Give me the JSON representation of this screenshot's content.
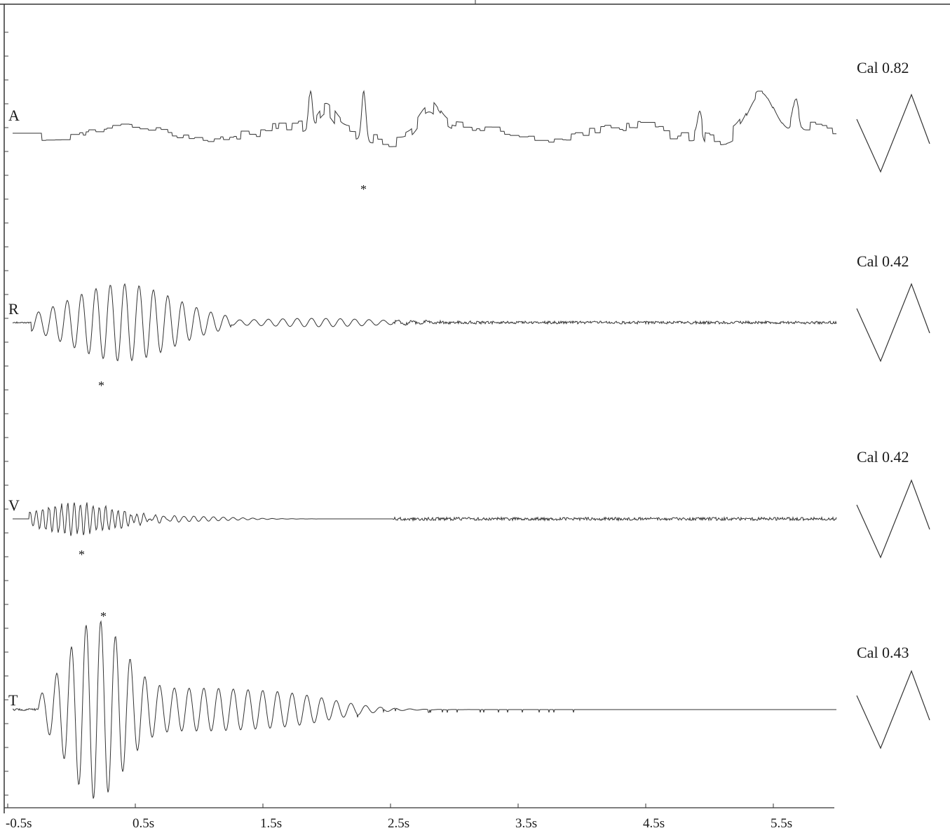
{
  "chart_data": {
    "type": "line",
    "x_axis": {
      "ticks": [
        "-0.5s",
        "0.5s",
        "1.5s",
        "2.5s",
        "3.5s",
        "4.5s",
        "5.5s"
      ],
      "range_s": [
        -0.5,
        6.0
      ]
    },
    "traces": [
      {
        "channel": "A",
        "calibration": "Cal 0.82",
        "marker": "*",
        "peak_time_s": 2.33,
        "signature": "stepped low-frequency wander, broad swings, sharp negative spike at peak"
      },
      {
        "channel": "R",
        "calibration": "Cal 0.42",
        "marker": "*",
        "peak_time_s": 0.2,
        "signature": "burst of large oscillation from -0.2s to 1.0s, then small ringing to 2.4s, then near-flat noise"
      },
      {
        "channel": "V",
        "calibration": "Cal 0.42",
        "marker": "*",
        "peak_time_s": 0.05,
        "signature": "small-amplitude burst to 0.3s, decaying ripple, then dense fine noise"
      },
      {
        "channel": "T",
        "calibration": "Cal 0.43",
        "marker": "*",
        "peak_time_s": 0.22,
        "signature": "very large burst peaking near 0.2s, decaying oscillation to 2.4s, flat afterward"
      }
    ]
  }
}
